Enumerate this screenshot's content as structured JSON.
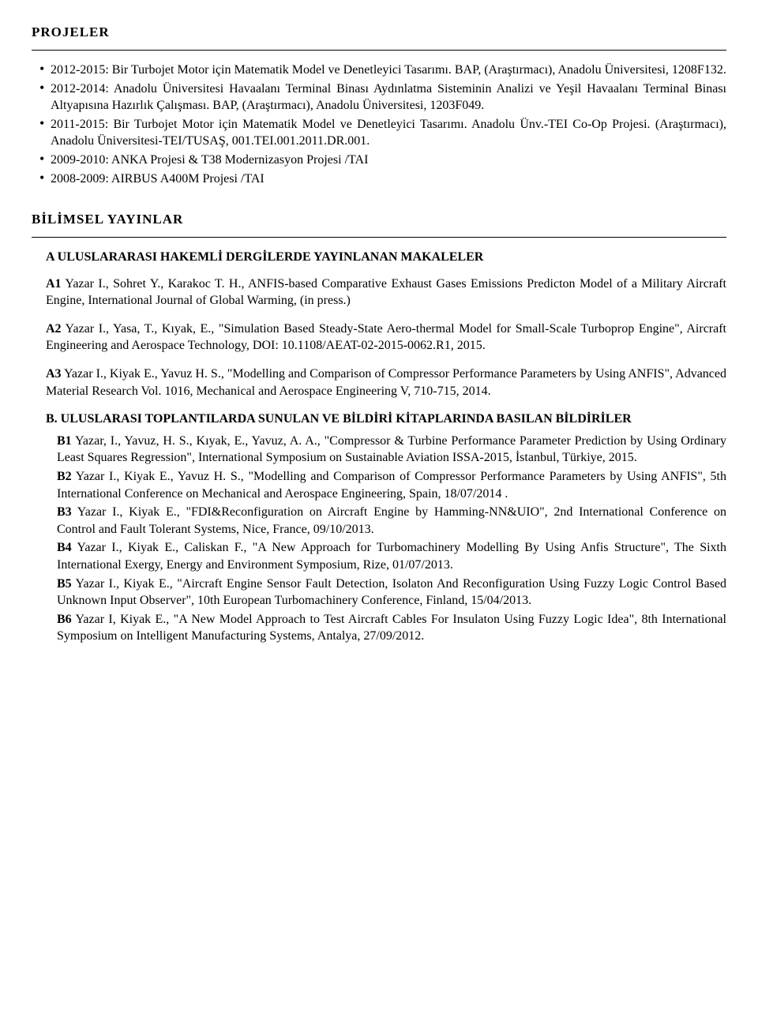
{
  "sections": {
    "projects": {
      "title": "PROJELER",
      "items": [
        "2012-2015: Bir Turbojet Motor için Matematik Model ve Denetleyici Tasarımı. BAP, (Araştırmacı), Anadolu Üniversitesi, 1208F132.",
        "2012-2014: Anadolu Üniversitesi Havaalanı Terminal Binası Aydınlatma Sisteminin Analizi ve Yeşil Havaalanı Terminal Binası Altyapısına Hazırlık Çalışması. BAP, (Araştırmacı), Anadolu Üniversitesi, 1203F049.",
        "2011-2015: Bir Turbojet Motor için Matematik Model ve Denetleyici Tasarımı. Anadolu Ünv.-TEI Co-Op Projesi. (Araştırmacı), Anadolu Üniversitesi-TEI/TUSAŞ, 001.TEI.001.2011.DR.001.",
        "2009-2010: ANKA Projesi & T38 Modernizasyon Projesi /TAI",
        "2008-2009: AIRBUS A400M Projesi /TAI"
      ]
    },
    "publications": {
      "title": "BİLİMSEL YAYINLAR",
      "groupA": {
        "heading": "A ULUSLARARASI HAKEMLİ DERGİLERDE YAYINLANAN MAKALELER",
        "items": [
          {
            "tag": "A1",
            "text": " Yazar I., Sohret Y., Karakoc T. H., ANFIS-based Comparative Exhaust Gases Emissions Predicton Model of a Military Aircraft Engine, International Journal of Global Warming, (in press.)"
          },
          {
            "tag": "A2",
            "text": " Yazar I., Yasa, T., Kıyak, E., \"Simulation Based Steady-State Aero-thermal Model for Small-Scale Turboprop Engine\", Aircraft Engineering and Aerospace Technology, DOI: 10.1108/AEAT-02-2015-0062.R1, 2015."
          },
          {
            "tag": "A3",
            "text": " Yazar I., Kiyak E., Yavuz H. S., \"Modelling and Comparison of Compressor Performance Parameters by Using ANFIS\", Advanced Material Research Vol. 1016, Mechanical and Aerospace Engineering V, 710-715, 2014."
          }
        ]
      },
      "groupB": {
        "heading": "B. ULUSLARASI TOPLANTILARDA SUNULAN VE BİLDİRİ KİTAPLARINDA BASILAN BİLDİRİLER",
        "items": [
          {
            "tag": "B1",
            "text": " Yazar, I., Yavuz, H. S., Kıyak, E., Yavuz, A. A., \"Compressor & Turbine Performance Parameter Prediction by Using Ordinary Least Squares Regression\", International Symposium on Sustainable Aviation ISSA-2015, İstanbul, Türkiye, 2015."
          },
          {
            "tag": "B2",
            "text": " Yazar I., Kiyak E., Yavuz H. S., \"Modelling and Comparison of Compressor Performance Parameters by Using ANFIS\", 5th International Conference on Mechanical and Aerospace Engineering, Spain, 18/07/2014 ."
          },
          {
            "tag": "B3",
            "text": " Yazar I., Kiyak E., \"FDI&Reconfiguration on Aircraft Engine by Hamming-NN&UIO\", 2nd International Conference on Control and Fault Tolerant Systems, Nice, France, 09/10/2013."
          },
          {
            "tag": "B4",
            "text": " Yazar I., Kiyak E., Caliskan F., \"A New Approach for Turbomachinery Modelling By Using Anfis Structure\", The Sixth International Exergy, Energy and Environment Symposium, Rize, 01/07/2013."
          },
          {
            "tag": "B5",
            "text": " Yazar I., Kiyak E., \"Aircraft Engine Sensor Fault Detection, Isolaton And Reconfiguration Using Fuzzy Logic Control Based Unknown Input Observer\", 10th European Turbomachinery Conference, Finland, 15/04/2013."
          },
          {
            "tag": "B6",
            "text": " Yazar I, Kiyak E., \"A New Model Approach to Test Aircraft Cables For Insulaton Using Fuzzy Logic Idea\", 8th International Symposium on Intelligent Manufacturing Systems, Antalya, 27/09/2012."
          }
        ]
      }
    }
  }
}
